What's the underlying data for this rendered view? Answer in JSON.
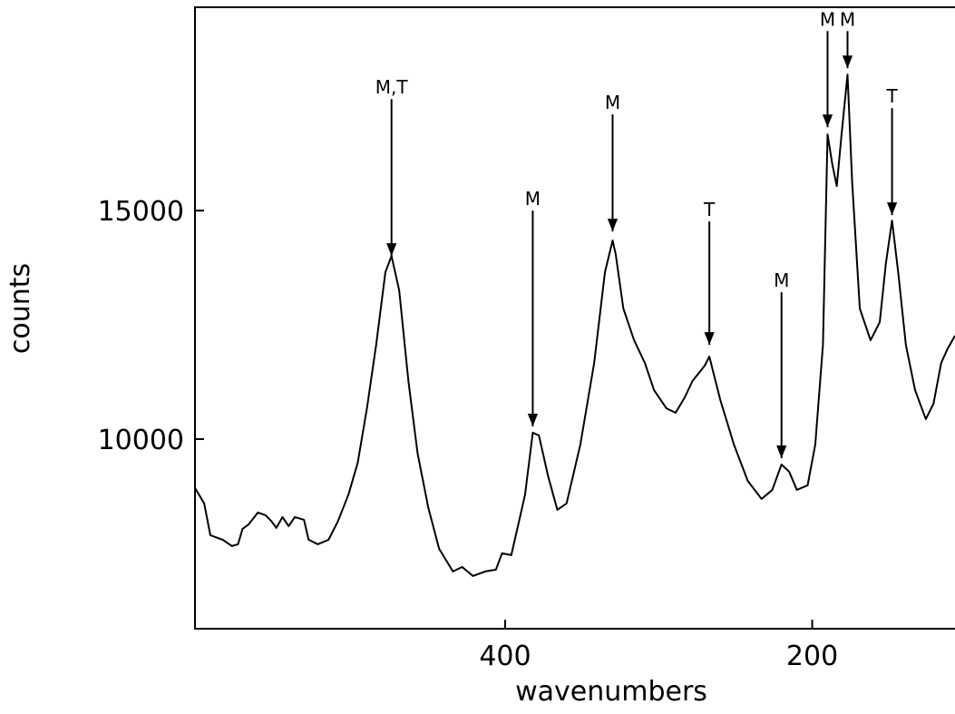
{
  "chart_data": {
    "type": "line",
    "xlabel": "wavenumbers",
    "ylabel": "counts",
    "x": [
      602,
      596,
      592,
      584,
      578,
      574,
      571,
      567,
      561,
      556,
      552,
      549,
      545,
      541,
      537,
      531,
      528,
      522,
      515,
      509,
      502,
      496,
      490,
      484,
      478,
      474,
      469,
      463,
      457,
      450,
      443,
      434,
      428,
      421,
      413,
      406,
      402,
      396,
      391,
      387,
      382,
      378,
      372,
      366,
      360,
      351,
      342,
      335,
      330,
      328,
      323,
      316,
      309,
      303,
      295,
      289,
      283,
      278,
      270,
      267,
      260,
      251,
      242,
      233,
      226,
      220,
      215,
      210,
      203,
      198,
      193,
      190,
      187,
      184,
      181,
      177,
      174,
      169,
      162,
      156,
      152,
      148,
      144,
      139,
      133,
      126,
      121,
      116,
      112,
      107
    ],
    "series": [
      {
        "color": "#000000",
        "values": [
          8929,
          8591,
          7897,
          7798,
          7659,
          7698,
          8036,
          8135,
          8393,
          8333,
          8194,
          8056,
          8294,
          8095,
          8294,
          8234,
          7798,
          7698,
          7798,
          8194,
          8790,
          9484,
          10675,
          12063,
          13651,
          14008,
          13254,
          11270,
          9683,
          8492,
          7599,
          7103,
          7202,
          7004,
          7103,
          7143,
          7500,
          7460,
          8194,
          8790,
          10139,
          10079,
          9187,
          8452,
          8591,
          9881,
          11667,
          13651,
          14345,
          14048,
          12857,
          12163,
          11667,
          11071,
          10675,
          10575,
          10913,
          11270,
          11607,
          11806,
          10873,
          9881,
          9087,
          8690,
          8889,
          9444,
          9286,
          8889,
          8988,
          9881,
          12063,
          16667,
          16032,
          15536,
          16627,
          17976,
          15635,
          12857,
          12163,
          12560,
          13849,
          14782,
          13651,
          12063,
          11071,
          10437,
          10774,
          11667,
          11964,
          12262
        ]
      }
    ],
    "xlim": [
      602,
      107
    ],
    "ylim": [
      5850,
      19450
    ],
    "xticks": [
      400,
      200
    ],
    "yticks": [
      10000,
      15000
    ],
    "annotations": [
      {
        "text": "M,T",
        "xy": [
          474,
          14008
        ],
        "xytext": [
          474,
          17520
        ]
      },
      {
        "text": "M",
        "xy": [
          382,
          10278
        ],
        "xytext": [
          382,
          15079
        ]
      },
      {
        "text": "M",
        "xy": [
          330,
          14544
        ],
        "xytext": [
          330,
          17183
        ]
      },
      {
        "text": "T",
        "xy": [
          267,
          12063
        ],
        "xytext": [
          267,
          14841
        ]
      },
      {
        "text": "M",
        "xy": [
          220,
          9583
        ],
        "xytext": [
          220,
          13294
        ]
      },
      {
        "text": "M",
        "xy": [
          190,
          16825
        ],
        "xytext": [
          190,
          19008
        ]
      },
      {
        "text": "M",
        "xy": [
          177,
          18115
        ],
        "xytext": [
          177,
          19008
        ]
      },
      {
        "text": "T",
        "xy": [
          148,
          14901
        ],
        "xytext": [
          148,
          17321
        ]
      }
    ]
  }
}
